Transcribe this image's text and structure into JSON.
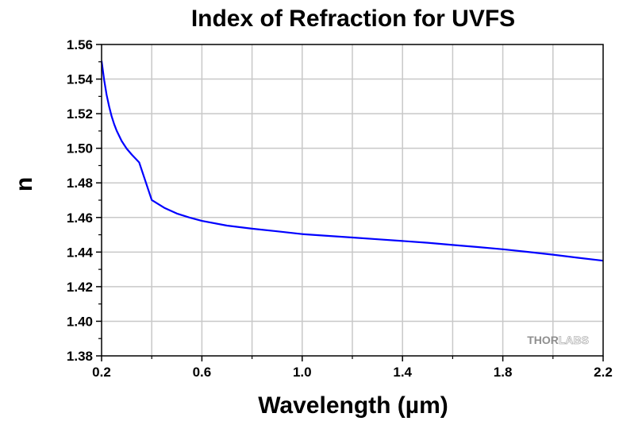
{
  "chart_data": {
    "type": "line",
    "title": "Index of Refraction for UVFS",
    "xlabel": "Wavelength (µm)",
    "ylabel": "n",
    "xlim": [
      0.2,
      2.2
    ],
    "ylim": [
      1.38,
      1.56
    ],
    "x_ticks": [
      "0.2",
      "0.6",
      "1.0",
      "1.4",
      "1.8",
      "2.2"
    ],
    "y_ticks": [
      "1.38",
      "1.40",
      "1.42",
      "1.44",
      "1.46",
      "1.48",
      "1.50",
      "1.52",
      "1.54",
      "1.56"
    ],
    "grid": true,
    "series": [
      {
        "color": "#0000ff",
        "x": [
          0.2,
          0.21,
          0.22,
          0.23,
          0.24,
          0.25,
          0.26,
          0.28,
          0.3,
          0.32,
          0.35,
          0.4,
          0.45,
          0.5,
          0.55,
          0.6,
          0.7,
          0.8,
          0.9,
          1.0,
          1.1,
          1.2,
          1.3,
          1.4,
          1.5,
          1.6,
          1.7,
          1.8,
          1.9,
          2.0,
          2.1,
          2.2
        ],
        "y": [
          1.5505,
          1.5396,
          1.531,
          1.5242,
          1.5186,
          1.514,
          1.5102,
          1.5042,
          1.4998,
          1.4964,
          1.4918,
          1.4701,
          1.4656,
          1.4623,
          1.46,
          1.458,
          1.4553,
          1.4535,
          1.452,
          1.4504,
          1.4494,
          1.4484,
          1.4474,
          1.4464,
          1.4454,
          1.4441,
          1.4429,
          1.4416,
          1.4401,
          1.4385,
          1.4367,
          1.435
        ]
      }
    ]
  },
  "watermark": {
    "part1": "THOR",
    "part2": "LABS"
  }
}
